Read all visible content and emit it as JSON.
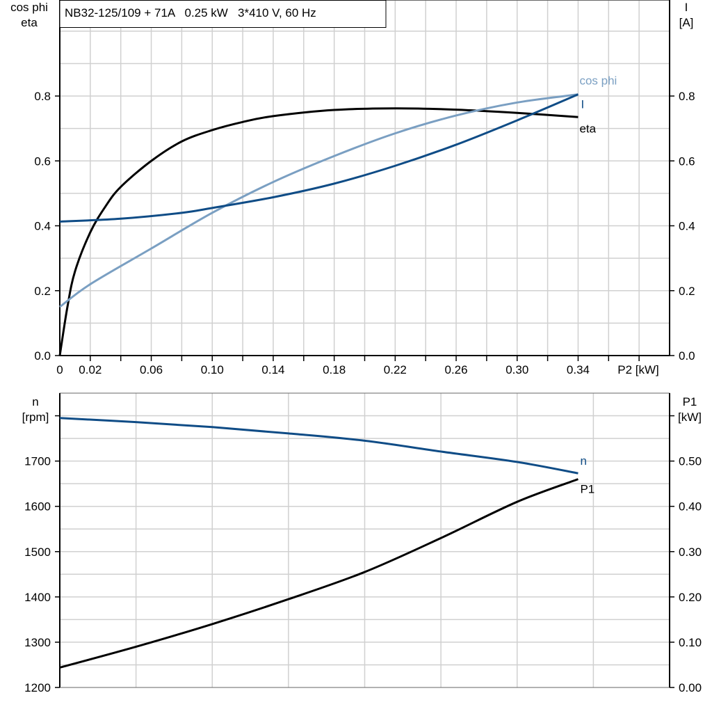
{
  "chart_data": [
    {
      "type": "line",
      "title": "NB32-125/109 + 71A   0.25 kW   3*410 V, 60 Hz",
      "xlabel": "P2 [kW]",
      "ylabel_left": [
        "cos phi",
        "eta"
      ],
      "ylabel_right": [
        "I",
        "[A]"
      ],
      "xlim": [
        0,
        0.4
      ],
      "ylim": [
        0,
        1.1
      ],
      "ylim_right": [
        0,
        1.1
      ],
      "x_tick_labels": [
        "0",
        "0.02",
        "0.06",
        "0.10",
        "0.14",
        "0.18",
        "0.22",
        "0.26",
        "0.30",
        "0.34"
      ],
      "y_tick_labels": [
        "0.0",
        "0.2",
        "0.4",
        "0.6",
        "0.8"
      ],
      "y_right_tick_labels": [
        "0.0",
        "0.2",
        "0.4",
        "0.6",
        "0.8"
      ],
      "grid": true,
      "series": [
        {
          "name": "eta",
          "axis": "left",
          "color": "#000000",
          "x": [
            0,
            0.005,
            0.01,
            0.02,
            0.03,
            0.04,
            0.06,
            0.08,
            0.1,
            0.12,
            0.14,
            0.18,
            0.22,
            0.26,
            0.3,
            0.34
          ],
          "y": [
            0,
            0.15,
            0.26,
            0.38,
            0.46,
            0.52,
            0.6,
            0.66,
            0.695,
            0.72,
            0.738,
            0.757,
            0.762,
            0.758,
            0.748,
            0.735
          ]
        },
        {
          "name": "cos phi",
          "axis": "left",
          "color": "#7a9fc2",
          "x": [
            0,
            0.02,
            0.06,
            0.1,
            0.14,
            0.18,
            0.22,
            0.26,
            0.3,
            0.34
          ],
          "y": [
            0.15,
            0.22,
            0.33,
            0.44,
            0.535,
            0.615,
            0.685,
            0.74,
            0.78,
            0.805
          ]
        },
        {
          "name": "I",
          "axis": "right",
          "color": "#0f4c86",
          "x": [
            0,
            0.04,
            0.08,
            0.1,
            0.14,
            0.18,
            0.22,
            0.26,
            0.3,
            0.34
          ],
          "y": [
            0.413,
            0.422,
            0.44,
            0.455,
            0.488,
            0.53,
            0.585,
            0.65,
            0.725,
            0.805
          ]
        }
      ]
    },
    {
      "type": "line",
      "xlim": [
        0,
        0.4
      ],
      "ylabel_left": [
        "n",
        "[rpm]"
      ],
      "ylabel_right": [
        "P1",
        "[kW]"
      ],
      "ylim": [
        1200,
        1850
      ],
      "ylim_right": [
        0,
        0.65
      ],
      "y_tick_labels": [
        "1200",
        "1300",
        "1400",
        "1500",
        "1600",
        "1700"
      ],
      "y_right_tick_labels": [
        "0.00",
        "0.10",
        "0.20",
        "0.30",
        "0.40",
        "0.50"
      ],
      "grid": true,
      "series": [
        {
          "name": "n",
          "axis": "left",
          "color": "#0f4c86",
          "x": [
            0,
            0.05,
            0.1,
            0.15,
            0.2,
            0.25,
            0.3,
            0.34
          ],
          "y": [
            1795,
            1786,
            1775,
            1761,
            1745,
            1721,
            1698,
            1673
          ]
        },
        {
          "name": "P1",
          "axis": "right",
          "color": "#000000",
          "x": [
            0,
            0.05,
            0.1,
            0.15,
            0.2,
            0.25,
            0.3,
            0.34
          ],
          "y": [
            0.044,
            0.09,
            0.14,
            0.195,
            0.255,
            0.33,
            0.41,
            0.46
          ]
        }
      ]
    }
  ]
}
